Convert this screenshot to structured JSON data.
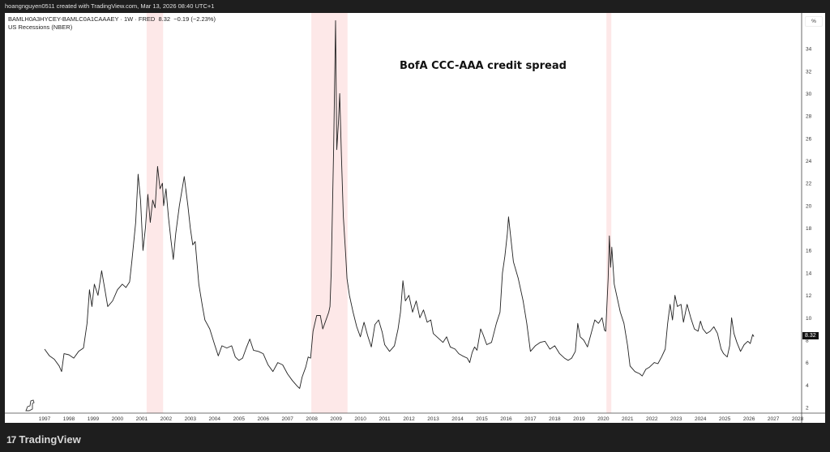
{
  "header": {
    "attribution": "hoangnguyen0511 created with TradingView.com, Mar 13, 2026 08:40 UTC+1"
  },
  "legend": {
    "symbol": "BAMLH0A3HYCEY-BAMLC0A1CAAAEY · 1W · FRED",
    "last": "8.32",
    "change": "−0.19 (−2.23%)",
    "study": "US Recessions (NBER)"
  },
  "price_axis": {
    "unit_label": "%",
    "last_value_label": "8.32"
  },
  "footer": {
    "brand": "TradingView",
    "logo_mark": "17"
  },
  "colors": {
    "line": "#222222",
    "recession": "#fde8e8",
    "background": "#ffffff",
    "frame": "#1e1e1e"
  },
  "chart_data": {
    "type": "line",
    "title": "BofA CCC-AAA credit spread",
    "xlabel": "",
    "ylabel": "",
    "ylim": [
      2,
      36.5
    ],
    "xlim": [
      1997,
      2028
    ],
    "grid": false,
    "y_ticks": [
      "2",
      "4",
      "6",
      "8",
      "10",
      "12",
      "14",
      "16",
      "18",
      "20",
      "22",
      "24",
      "26",
      "28",
      "30",
      "32",
      "34"
    ],
    "x_ticks": [
      "1997",
      "1998",
      "1999",
      "2000",
      "2001",
      "2002",
      "2003",
      "2004",
      "2005",
      "2006",
      "2007",
      "2008",
      "2009",
      "2010",
      "2011",
      "2012",
      "2013",
      "2014",
      "2015",
      "2016",
      "2017",
      "2018",
      "2019",
      "2020",
      "2021",
      "2022",
      "2023",
      "2024",
      "2025",
      "2026",
      "2027",
      "2028"
    ],
    "recessions": [
      [
        2001.2,
        2001.88
      ],
      [
        2007.98,
        2009.47
      ],
      [
        2020.13,
        2020.33
      ]
    ],
    "series": [
      {
        "x": [
          1997.0,
          1997.2,
          1997.4,
          1997.6,
          1997.7,
          1997.8,
          1998.0,
          1998.2,
          1998.4,
          1998.6,
          1998.75,
          1998.85,
          1998.95,
          1999.05,
          1999.2,
          1999.35,
          1999.5,
          1999.6,
          1999.8,
          2000.0,
          2000.2,
          2000.35,
          2000.5,
          2000.6,
          2000.75,
          2000.85,
          2000.95,
          2001.05,
          2001.15,
          2001.25,
          2001.35,
          2001.45,
          2001.55,
          2001.65,
          2001.75,
          2001.85,
          2001.9,
          2002.0,
          2002.1,
          2002.2,
          2002.3,
          2002.4,
          2002.55,
          2002.75,
          2002.9,
          2003.0,
          2003.1,
          2003.2,
          2003.35,
          2003.5,
          2003.6,
          2003.8,
          2004.0,
          2004.15,
          2004.3,
          2004.5,
          2004.7,
          2004.85,
          2005.0,
          2005.15,
          2005.3,
          2005.45,
          2005.6,
          2005.8,
          2006.0,
          2006.2,
          2006.4,
          2006.6,
          2006.8,
          2007.0,
          2007.2,
          2007.4,
          2007.5,
          2007.6,
          2007.75,
          2007.85,
          2007.95,
          2008.05,
          2008.2,
          2008.35,
          2008.45,
          2008.55,
          2008.7,
          2008.75,
          2008.8,
          2008.9,
          2008.98,
          2009.03,
          2009.1,
          2009.15,
          2009.22,
          2009.3,
          2009.4,
          2009.45,
          2009.55,
          2009.7,
          2009.85,
          2010.0,
          2010.15,
          2010.3,
          2010.45,
          2010.6,
          2010.75,
          2010.9,
          2011.0,
          2011.2,
          2011.4,
          2011.55,
          2011.65,
          2011.75,
          2011.85,
          2012.0,
          2012.15,
          2012.3,
          2012.45,
          2012.6,
          2012.75,
          2012.9,
          2013.0,
          2013.2,
          2013.4,
          2013.55,
          2013.7,
          2013.9,
          2014.05,
          2014.2,
          2014.4,
          2014.5,
          2014.6,
          2014.7,
          2014.8,
          2014.95,
          2015.05,
          2015.2,
          2015.4,
          2015.6,
          2015.75,
          2015.85,
          2015.95,
          2016.05,
          2016.1,
          2016.2,
          2016.3,
          2016.5,
          2016.7,
          2016.85,
          2017.0,
          2017.2,
          2017.4,
          2017.6,
          2017.8,
          2018.0,
          2018.2,
          2018.4,
          2018.55,
          2018.7,
          2018.85,
          2018.95,
          2019.05,
          2019.2,
          2019.35,
          2019.5,
          2019.65,
          2019.8,
          2019.95,
          2020.05,
          2020.1,
          2020.2,
          2020.25,
          2020.3,
          2020.35,
          2020.45,
          2020.55,
          2020.7,
          2020.85,
          2021.0,
          2021.1,
          2021.3,
          2021.5,
          2021.6,
          2021.75,
          2021.9,
          2022.1,
          2022.25,
          2022.4,
          2022.55,
          2022.65,
          2022.75,
          2022.85,
          2022.95,
          2023.05,
          2023.2,
          2023.3,
          2023.45,
          2023.6,
          2023.75,
          2023.9,
          2024.0,
          2024.1,
          2024.25,
          2024.4,
          2024.55,
          2024.7,
          2024.85,
          2024.95,
          2025.1,
          2025.2,
          2025.28,
          2025.38,
          2025.5,
          2025.65,
          2025.8,
          2025.95,
          2026.05,
          2026.15,
          2026.2
        ],
        "values": [
          7.2,
          6.6,
          6.3,
          5.7,
          5.2,
          6.8,
          6.7,
          6.4,
          7.0,
          7.3,
          9.5,
          12.5,
          11.0,
          13.0,
          12.0,
          14.2,
          12.3,
          11.0,
          11.5,
          12.5,
          13.0,
          12.7,
          13.2,
          15.2,
          18.5,
          22.8,
          20.5,
          16.0,
          18.0,
          21.0,
          18.5,
          20.5,
          19.8,
          23.5,
          21.5,
          22.0,
          20.0,
          21.5,
          19.0,
          17.0,
          15.2,
          17.5,
          20.0,
          22.6,
          20.0,
          18.0,
          16.5,
          16.8,
          13.0,
          11.0,
          9.8,
          9.0,
          7.6,
          6.6,
          7.5,
          7.3,
          7.5,
          6.5,
          6.2,
          6.4,
          7.3,
          8.1,
          7.1,
          7.0,
          6.8,
          5.8,
          5.2,
          6.0,
          5.8,
          5.0,
          4.4,
          3.9,
          3.7,
          4.7,
          5.6,
          6.5,
          6.4,
          8.8,
          10.2,
          10.2,
          9.0,
          9.6,
          10.5,
          11.0,
          14.0,
          25.0,
          36.5,
          25.0,
          27.5,
          30.0,
          24.5,
          19.0,
          15.5,
          13.5,
          12.0,
          10.5,
          9.2,
          8.3,
          9.6,
          8.4,
          7.4,
          9.4,
          9.8,
          8.7,
          7.6,
          7.0,
          7.5,
          9.0,
          10.5,
          13.3,
          11.5,
          12.0,
          10.5,
          11.5,
          10.0,
          10.7,
          9.6,
          9.8,
          8.6,
          8.2,
          7.8,
          8.3,
          7.4,
          7.2,
          6.8,
          6.6,
          6.4,
          6.0,
          6.9,
          7.4,
          7.1,
          9.0,
          8.5,
          7.6,
          7.8,
          9.5,
          10.5,
          14.0,
          15.5,
          17.5,
          19.0,
          17.0,
          15.0,
          13.5,
          11.5,
          9.5,
          7.0,
          7.5,
          7.8,
          7.9,
          7.2,
          7.5,
          6.8,
          6.4,
          6.2,
          6.4,
          7.0,
          9.5,
          8.3,
          8.0,
          7.4,
          8.6,
          9.8,
          9.5,
          10.0,
          8.9,
          8.8,
          13.5,
          17.3,
          14.5,
          16.3,
          13.0,
          12.0,
          10.5,
          9.5,
          7.5,
          5.7,
          5.2,
          5.0,
          4.8,
          5.4,
          5.6,
          6.0,
          5.9,
          6.5,
          7.2,
          9.5,
          11.2,
          9.8,
          12.0,
          11.0,
          11.2,
          9.6,
          11.2,
          10.0,
          9.0,
          8.8,
          9.7,
          9.0,
          8.6,
          8.8,
          9.2,
          8.6,
          7.2,
          6.8,
          6.5,
          7.5,
          10.0,
          8.6,
          7.8,
          7.0,
          7.6,
          7.9,
          7.7,
          8.5,
          8.32
        ]
      }
    ]
  }
}
